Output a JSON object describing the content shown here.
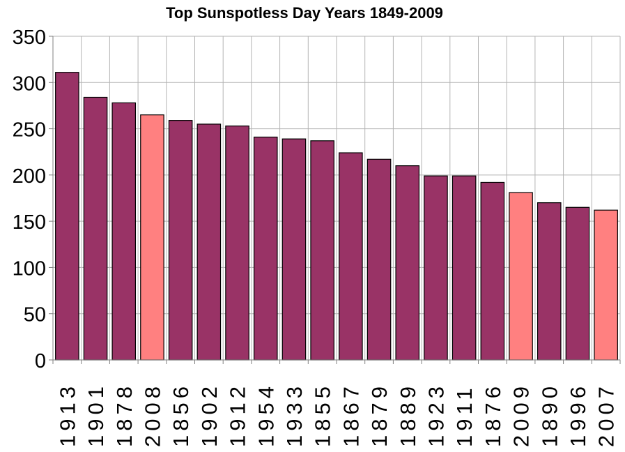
{
  "chart_data": {
    "type": "bar",
    "title": "Top Sunspotless Day Years 1849-2009",
    "xlabel": "",
    "ylabel": "",
    "ylim": [
      0,
      350
    ],
    "yticks": [
      0,
      50,
      100,
      150,
      200,
      250,
      300,
      350
    ],
    "grid": true,
    "legend": "none",
    "categories": [
      "1913",
      "1901",
      "1878",
      "2008",
      "1856",
      "1902",
      "1912",
      "1954",
      "1933",
      "1855",
      "1867",
      "1879",
      "1889",
      "1923",
      "1911",
      "1876",
      "2009",
      "1890",
      "1996",
      "2007"
    ],
    "values": [
      311,
      284,
      278,
      265,
      259,
      255,
      253,
      241,
      239,
      237,
      224,
      217,
      210,
      199,
      199,
      192,
      181,
      170,
      165,
      162
    ],
    "highlighted": [
      "2008",
      "2009",
      "2007"
    ],
    "colors": {
      "bar": "#993366",
      "highlight": "#ff8080",
      "grid": "#b3b3b3",
      "axis": "#808080"
    }
  }
}
